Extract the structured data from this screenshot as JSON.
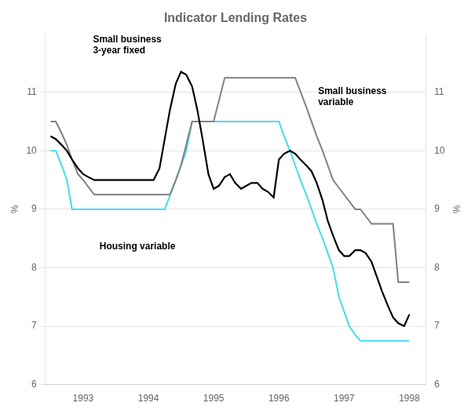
{
  "chart_data": {
    "type": "line",
    "title": "Indicator Lending Rates",
    "ylabel": "%",
    "y2label": "%",
    "xlim": [
      1992.42,
      1998.25
    ],
    "xticks": [
      1993,
      1994,
      1995,
      1996,
      1997,
      1998
    ],
    "ylim": [
      6,
      12
    ],
    "yticks": [
      6,
      7,
      8,
      9,
      10,
      11
    ],
    "y2lim": [
      6,
      12
    ],
    "y2ticks": [
      6,
      7,
      8,
      9,
      10,
      11
    ],
    "grid": "y",
    "series": [
      {
        "color": "#44ddee",
        "x": [
          1992.5,
          1992.58,
          1992.67,
          1992.75,
          1992.83,
          1993.0,
          1993.17,
          1993.33,
          1993.42,
          1993.5,
          1993.67,
          1993.83,
          1994.0,
          1994.17,
          1994.25,
          1994.42,
          1994.5,
          1994.58,
          1994.67,
          1994.83,
          1995.0,
          1995.08,
          1995.33,
          1995.5,
          1995.67,
          1995.75,
          1995.83,
          1995.92,
          1996.0,
          1996.08,
          1996.17,
          1996.25,
          1996.33,
          1996.42,
          1996.5,
          1996.58,
          1996.67,
          1996.75,
          1996.83,
          1996.92,
          1997.0,
          1997.08,
          1997.17,
          1997.25,
          1997.33,
          1997.42,
          1997.5,
          1997.67,
          1997.75,
          1997.83,
          1997.92,
          1998.0
        ],
        "values": [
          10.0,
          10.0,
          9.75,
          9.5,
          9.0,
          9.0,
          9.0,
          9.0,
          9.0,
          9.0,
          9.0,
          9.0,
          9.0,
          9.0,
          9.0,
          9.5,
          9.75,
          10.0,
          10.5,
          10.5,
          10.5,
          10.5,
          10.5,
          10.5,
          10.5,
          10.5,
          10.5,
          10.5,
          10.5,
          10.25,
          10.0,
          9.75,
          9.5,
          9.25,
          9.0,
          8.75,
          8.5,
          8.25,
          8.0,
          7.5,
          7.25,
          7.0,
          6.85,
          6.75,
          6.75,
          6.75,
          6.75,
          6.75,
          6.75,
          6.75,
          6.75,
          6.75
        ]
      },
      {
        "color": "#808080",
        "x": [
          1992.5,
          1992.58,
          1992.67,
          1992.75,
          1992.83,
          1992.92,
          1993.0,
          1993.17,
          1993.33,
          1993.5,
          1993.67,
          1993.83,
          1994.0,
          1994.17,
          1994.33,
          1994.42,
          1994.5,
          1994.67,
          1994.83,
          1995.0,
          1995.17,
          1995.42,
          1995.5,
          1995.67,
          1995.83,
          1995.92,
          1996.0,
          1996.17,
          1996.25,
          1996.42,
          1996.5,
          1996.58,
          1996.67,
          1996.75,
          1996.83,
          1997.0,
          1997.17,
          1997.25,
          1997.42,
          1997.5,
          1997.67,
          1997.75,
          1997.83,
          1998.0
        ],
        "values": [
          10.5,
          10.5,
          10.3,
          10.1,
          9.85,
          9.6,
          9.5,
          9.25,
          9.25,
          9.25,
          9.25,
          9.25,
          9.25,
          9.25,
          9.25,
          9.5,
          9.75,
          10.5,
          10.5,
          10.5,
          11.25,
          11.25,
          11.25,
          11.25,
          11.25,
          11.25,
          11.25,
          11.25,
          11.25,
          10.75,
          10.5,
          10.25,
          10.0,
          9.75,
          9.5,
          9.25,
          9.0,
          9.0,
          8.75,
          8.75,
          8.75,
          8.75,
          7.75,
          7.75
        ]
      },
      {
        "color": "#000000",
        "x": [
          1992.5,
          1992.58,
          1992.67,
          1992.75,
          1992.83,
          1992.92,
          1993.0,
          1993.08,
          1993.17,
          1993.25,
          1993.33,
          1993.42,
          1993.5,
          1993.58,
          1993.67,
          1993.75,
          1993.83,
          1993.92,
          1994.0,
          1994.08,
          1994.17,
          1994.25,
          1994.33,
          1994.42,
          1994.5,
          1994.58,
          1994.67,
          1994.75,
          1994.83,
          1994.92,
          1995.0,
          1995.08,
          1995.17,
          1995.25,
          1995.33,
          1995.42,
          1995.5,
          1995.58,
          1995.67,
          1995.75,
          1995.83,
          1995.92,
          1996.0,
          1996.08,
          1996.17,
          1996.25,
          1996.33,
          1996.42,
          1996.5,
          1996.58,
          1996.67,
          1996.75,
          1996.83,
          1996.92,
          1997.0,
          1997.08,
          1997.17,
          1997.25,
          1997.33,
          1997.42,
          1997.5,
          1997.58,
          1997.67,
          1997.75,
          1997.83,
          1997.92,
          1998.0
        ],
        "values": [
          10.25,
          10.2,
          10.1,
          10.0,
          9.85,
          9.7,
          9.6,
          9.55,
          9.5,
          9.5,
          9.5,
          9.5,
          9.5,
          9.5,
          9.5,
          9.5,
          9.5,
          9.5,
          9.5,
          9.5,
          9.7,
          10.2,
          10.7,
          11.15,
          11.35,
          11.3,
          11.1,
          10.7,
          10.2,
          9.6,
          9.35,
          9.4,
          9.55,
          9.6,
          9.45,
          9.35,
          9.4,
          9.45,
          9.45,
          9.35,
          9.3,
          9.2,
          9.85,
          9.95,
          10.0,
          9.95,
          9.85,
          9.75,
          9.65,
          9.45,
          9.15,
          8.8,
          8.55,
          8.3,
          8.2,
          8.2,
          8.3,
          8.3,
          8.25,
          8.1,
          7.85,
          7.6,
          7.35,
          7.15,
          7.05,
          7.0,
          7.2
        ]
      }
    ],
    "annotations": [
      {
        "text": "Small business\n3-year fixed",
        "x": 1993.15,
        "y": 11.6
      },
      {
        "text": "Small business\nvariable",
        "x": 1996.6,
        "y": 11.1
      },
      {
        "text": "Housing variable",
        "x": 1993.25,
        "y": 8.35
      }
    ]
  }
}
